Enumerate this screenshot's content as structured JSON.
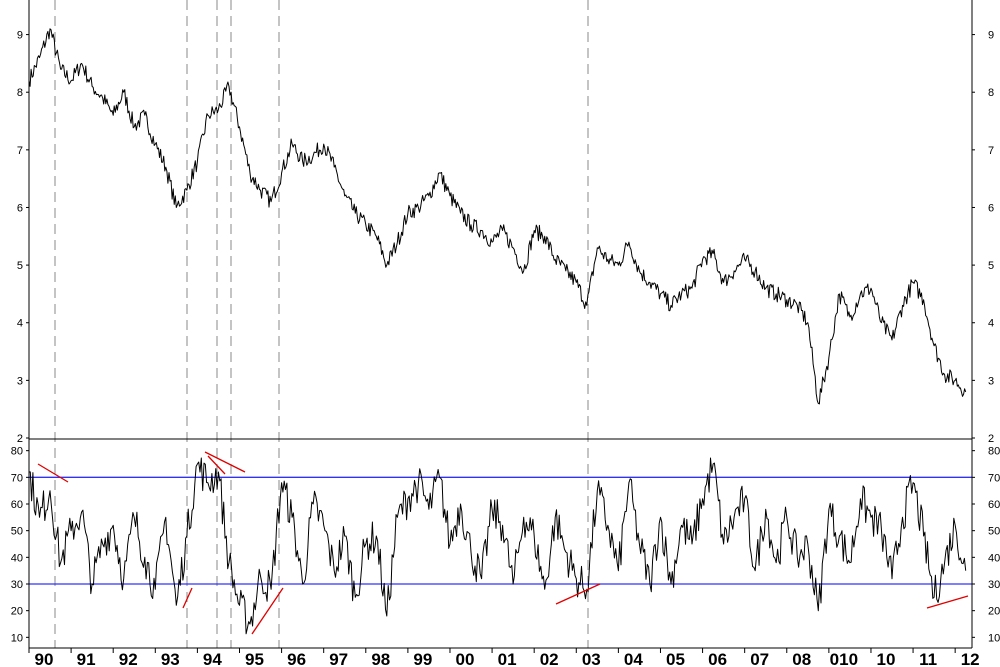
{
  "chart_data": [
    {
      "type": "line",
      "ylim": [
        2,
        9.6
      ],
      "y_ticks": [
        2,
        3,
        4,
        5,
        6,
        7,
        8,
        9
      ],
      "y_tick_labels": [
        "2",
        "3",
        "4",
        "5",
        "6",
        "7",
        "8",
        "9"
      ],
      "grid": false,
      "series": [
        {
          "color": "#000000",
          "x": [
            1990.0,
            1990.25,
            1990.5,
            1990.75,
            1991.0,
            1991.25,
            1991.5,
            1991.75,
            1992.0,
            1992.25,
            1992.5,
            1992.75,
            1993.0,
            1993.25,
            1993.5,
            1993.75,
            1994.0,
            1994.25,
            1994.5,
            1994.75,
            1995.0,
            1995.25,
            1995.5,
            1995.75,
            1996.0,
            1996.25,
            1996.5,
            1996.75,
            1997.0,
            1997.25,
            1997.5,
            1997.75,
            1998.0,
            1998.25,
            1998.5,
            1998.75,
            1999.0,
            1999.25,
            1999.5,
            1999.75,
            2000.0,
            2000.25,
            2000.5,
            2000.75,
            2001.0,
            2001.25,
            2001.5,
            2001.75,
            2002.0,
            2002.25,
            2002.5,
            2002.75,
            2003.0,
            2003.25,
            2003.5,
            2003.75,
            2004.0,
            2004.25,
            2004.5,
            2004.75,
            2005.0,
            2005.25,
            2005.5,
            2005.75,
            2006.0,
            2006.25,
            2006.5,
            2006.75,
            2007.0,
            2007.25,
            2007.5,
            2007.75,
            2008.0,
            2008.25,
            2008.5,
            2008.75,
            2009.0,
            2009.25,
            2009.5,
            2009.75,
            2010.0,
            2010.25,
            2010.5,
            2010.75,
            2011.0,
            2011.25,
            2011.5,
            2011.75,
            2012.0,
            2012.25
          ],
          "values": [
            8.2,
            8.6,
            9.1,
            8.4,
            8.2,
            8.5,
            8.1,
            7.9,
            7.6,
            8.0,
            7.4,
            7.6,
            7.1,
            6.7,
            6.0,
            6.3,
            6.8,
            7.6,
            7.7,
            8.1,
            7.4,
            6.6,
            6.3,
            6.1,
            6.6,
            7.1,
            6.8,
            6.9,
            7.1,
            6.7,
            6.2,
            5.9,
            5.7,
            5.5,
            5.0,
            5.4,
            5.9,
            6.0,
            6.2,
            6.6,
            6.2,
            5.9,
            5.7,
            5.6,
            5.4,
            5.6,
            5.3,
            4.9,
            5.6,
            5.5,
            5.1,
            4.9,
            4.7,
            4.3,
            5.3,
            5.1,
            5.0,
            5.4,
            4.9,
            4.7,
            4.5,
            4.3,
            4.5,
            4.6,
            5.1,
            5.2,
            4.7,
            4.9,
            5.1,
            4.9,
            4.6,
            4.5,
            4.4,
            4.3,
            4.0,
            2.6,
            3.4,
            4.5,
            4.1,
            4.5,
            4.6,
            4.0,
            3.7,
            4.3,
            4.7,
            4.4,
            3.6,
            3.1,
            3.0,
            2.8
          ]
        }
      ],
      "x_labels": [
        "90",
        "91",
        "92",
        "93",
        "94",
        "95",
        "96",
        "97",
        "98",
        "99",
        "00",
        "01",
        "02",
        "03",
        "04",
        "05",
        "06",
        "07",
        "08",
        "010",
        "10",
        "11",
        "12"
      ]
    },
    {
      "type": "line",
      "ylim": [
        6,
        84
      ],
      "y_ticks": [
        10,
        20,
        30,
        40,
        50,
        60,
        70,
        80
      ],
      "y_tick_labels": [
        "10",
        "20",
        "30",
        "40",
        "50",
        "60",
        "70",
        "80"
      ],
      "reference_lines": [
        {
          "value": 70,
          "color": "#3030ff"
        },
        {
          "value": 30,
          "color": "#3030ff"
        }
      ],
      "series": [
        {
          "color": "#000000",
          "x": [
            1990.0,
            1990.25,
            1990.5,
            1990.75,
            1991.0,
            1991.25,
            1991.5,
            1991.75,
            1992.0,
            1992.25,
            1992.5,
            1992.75,
            1993.0,
            1993.25,
            1993.5,
            1993.75,
            1994.0,
            1994.25,
            1994.5,
            1994.75,
            1995.0,
            1995.25,
            1995.5,
            1995.75,
            1996.0,
            1996.25,
            1996.5,
            1996.75,
            1997.0,
            1997.25,
            1997.5,
            1997.75,
            1998.0,
            1998.25,
            1998.5,
            1998.75,
            1999.0,
            1999.25,
            1999.5,
            1999.75,
            2000.0,
            2000.25,
            2000.5,
            2000.75,
            2001.0,
            2001.25,
            2001.5,
            2001.75,
            2002.0,
            2002.25,
            2002.5,
            2002.75,
            2003.0,
            2003.25,
            2003.5,
            2003.75,
            2004.0,
            2004.25,
            2004.5,
            2004.75,
            2005.0,
            2005.25,
            2005.5,
            2005.75,
            2006.0,
            2006.25,
            2006.5,
            2006.75,
            2007.0,
            2007.25,
            2007.5,
            2007.75,
            2008.0,
            2008.25,
            2008.5,
            2008.75,
            2009.0,
            2009.25,
            2009.5,
            2009.75,
            2010.0,
            2010.25,
            2010.5,
            2010.75,
            2011.0,
            2011.25,
            2011.5,
            2011.75,
            2012.0,
            2012.25
          ],
          "values": [
            72,
            55,
            65,
            38,
            50,
            57,
            30,
            45,
            52,
            32,
            55,
            40,
            28,
            55,
            22,
            48,
            75,
            68,
            72,
            38,
            22,
            15,
            33,
            28,
            68,
            55,
            30,
            60,
            52,
            35,
            48,
            25,
            45,
            48,
            18,
            55,
            62,
            68,
            58,
            70,
            45,
            60,
            42,
            32,
            58,
            52,
            30,
            55,
            48,
            28,
            55,
            42,
            32,
            28,
            65,
            52,
            35,
            68,
            45,
            30,
            55,
            30,
            52,
            45,
            62,
            75,
            45,
            55,
            62,
            35,
            58,
            38,
            55,
            40,
            45,
            20,
            58,
            48,
            38,
            62,
            55,
            50,
            32,
            55,
            68,
            48,
            25,
            38,
            52,
            35
          ]
        }
      ]
    }
  ]
}
